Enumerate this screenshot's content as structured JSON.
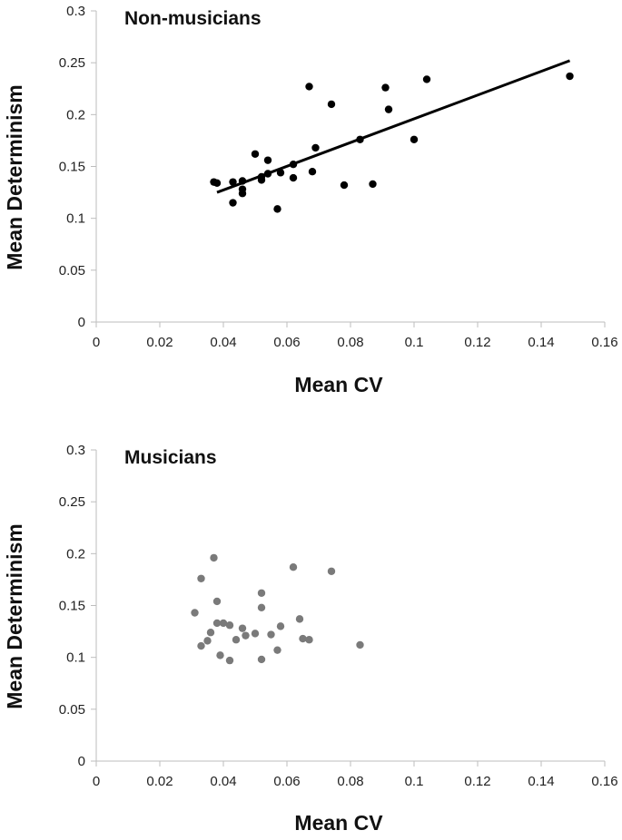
{
  "chart_data": [
    {
      "type": "scatter",
      "title": "Non-musicians",
      "xlabel": "Mean CV",
      "ylabel": "Mean Determinism",
      "xlim": [
        0,
        0.16
      ],
      "ylim": [
        0,
        0.3
      ],
      "x_ticks": [
        "0",
        "0.02",
        "0.04",
        "0.06",
        "0.08",
        "0.1",
        "0.12",
        "0.14",
        "0.16"
      ],
      "y_ticks": [
        "0",
        "0.05",
        "0.1",
        "0.15",
        "0.2",
        "0.25",
        "0.3"
      ],
      "marker_color": "#000000",
      "points": [
        [
          0.037,
          0.135
        ],
        [
          0.038,
          0.134
        ],
        [
          0.043,
          0.135
        ],
        [
          0.043,
          0.115
        ],
        [
          0.046,
          0.136
        ],
        [
          0.046,
          0.128
        ],
        [
          0.046,
          0.124
        ],
        [
          0.05,
          0.162
        ],
        [
          0.052,
          0.137
        ],
        [
          0.052,
          0.14
        ],
        [
          0.054,
          0.143
        ],
        [
          0.054,
          0.156
        ],
        [
          0.057,
          0.109
        ],
        [
          0.058,
          0.144
        ],
        [
          0.062,
          0.152
        ],
        [
          0.062,
          0.139
        ],
        [
          0.067,
          0.227
        ],
        [
          0.068,
          0.145
        ],
        [
          0.069,
          0.168
        ],
        [
          0.074,
          0.21
        ],
        [
          0.078,
          0.132
        ],
        [
          0.083,
          0.176
        ],
        [
          0.087,
          0.133
        ],
        [
          0.091,
          0.226
        ],
        [
          0.092,
          0.205
        ],
        [
          0.1,
          0.176
        ],
        [
          0.104,
          0.234
        ],
        [
          0.149,
          0.237
        ]
      ],
      "trendline": {
        "x": [
          0.038,
          0.149
        ],
        "y": [
          0.125,
          0.252
        ]
      }
    },
    {
      "type": "scatter",
      "title": "Musicians",
      "xlabel": "Mean CV",
      "ylabel": "Mean Determinism",
      "xlim": [
        0,
        0.16
      ],
      "ylim": [
        0,
        0.3
      ],
      "x_ticks": [
        "0",
        "0.02",
        "0.04",
        "0.06",
        "0.08",
        "0.1",
        "0.12",
        "0.14",
        "0.16"
      ],
      "y_ticks": [
        "0",
        "0.05",
        "0.1",
        "0.15",
        "0.2",
        "0.25",
        "0.3"
      ],
      "marker_color": "#7a7a7a",
      "points": [
        [
          0.031,
          0.143
        ],
        [
          0.033,
          0.111
        ],
        [
          0.033,
          0.176
        ],
        [
          0.035,
          0.116
        ],
        [
          0.036,
          0.124
        ],
        [
          0.037,
          0.196
        ],
        [
          0.038,
          0.154
        ],
        [
          0.038,
          0.133
        ],
        [
          0.039,
          0.102
        ],
        [
          0.04,
          0.133
        ],
        [
          0.042,
          0.131
        ],
        [
          0.042,
          0.097
        ],
        [
          0.044,
          0.117
        ],
        [
          0.046,
          0.128
        ],
        [
          0.047,
          0.121
        ],
        [
          0.05,
          0.123
        ],
        [
          0.052,
          0.098
        ],
        [
          0.052,
          0.162
        ],
        [
          0.052,
          0.148
        ],
        [
          0.055,
          0.122
        ],
        [
          0.057,
          0.107
        ],
        [
          0.058,
          0.13
        ],
        [
          0.062,
          0.187
        ],
        [
          0.064,
          0.137
        ],
        [
          0.065,
          0.118
        ],
        [
          0.067,
          0.117
        ],
        [
          0.074,
          0.183
        ],
        [
          0.083,
          0.112
        ]
      ]
    }
  ]
}
